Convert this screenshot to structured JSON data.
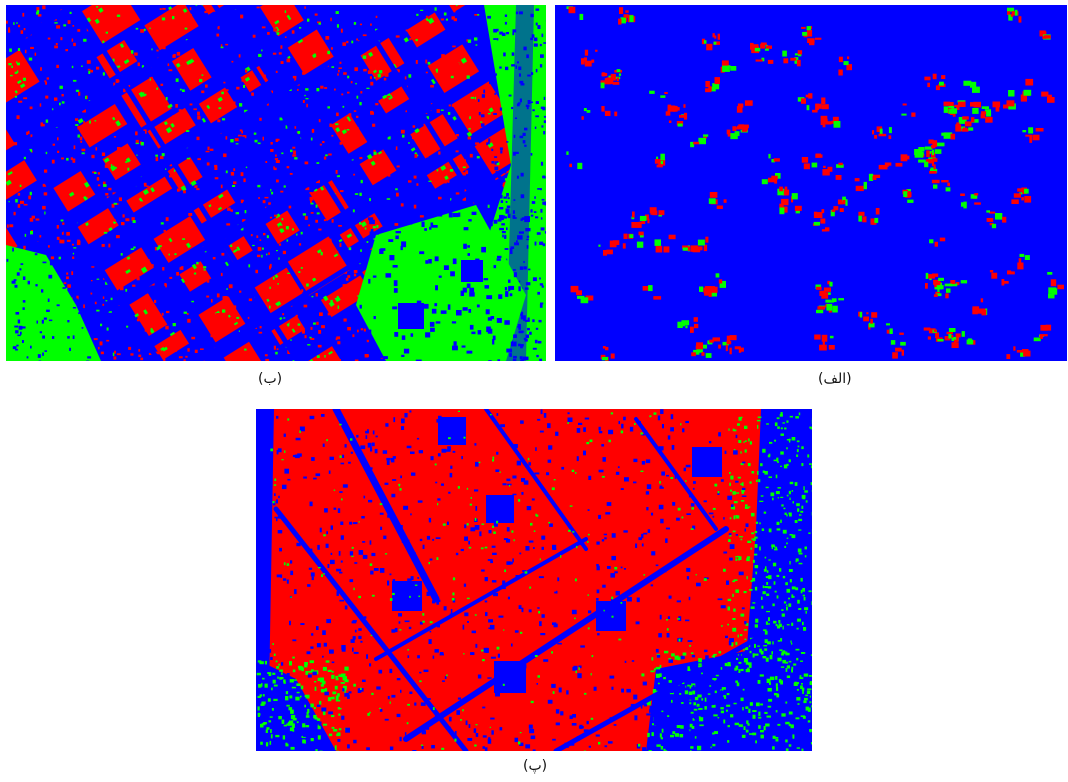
{
  "figure": {
    "panels": [
      {
        "caption": "(ب)"
      },
      {
        "caption": "(الف)"
      },
      {
        "caption": "(پ)"
      }
    ],
    "colors": {
      "background_class": "#0000ff",
      "built_class": "#ff0000",
      "vegetation_class": "#00ff00"
    }
  }
}
